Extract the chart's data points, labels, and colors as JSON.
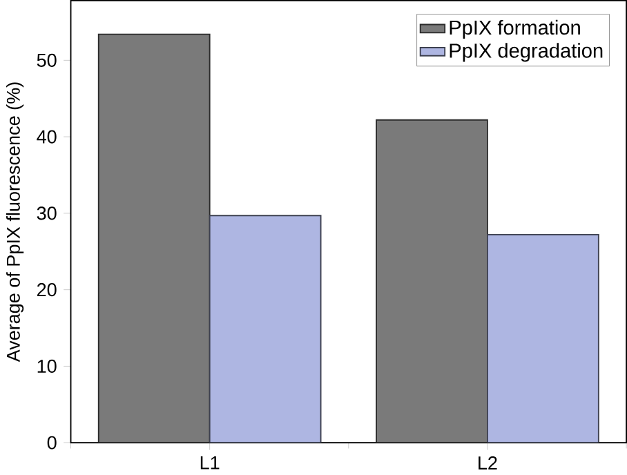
{
  "chart_data": {
    "type": "bar",
    "ylabel": "Average of PpIX fluorescence (%)",
    "categories": [
      "L1",
      "L2"
    ],
    "series": [
      {
        "name": "PpIX formation",
        "color": "#7a7a7a",
        "values": [
          53.4,
          42.2
        ]
      },
      {
        "name": "PpIX degradation",
        "color": "#aeb6e2",
        "values": [
          29.7,
          27.2
        ]
      }
    ],
    "ylim": [
      0,
      57.8
    ],
    "yticks": [
      0,
      10,
      20,
      30,
      40,
      50
    ],
    "legend": "top right",
    "grid": false
  }
}
